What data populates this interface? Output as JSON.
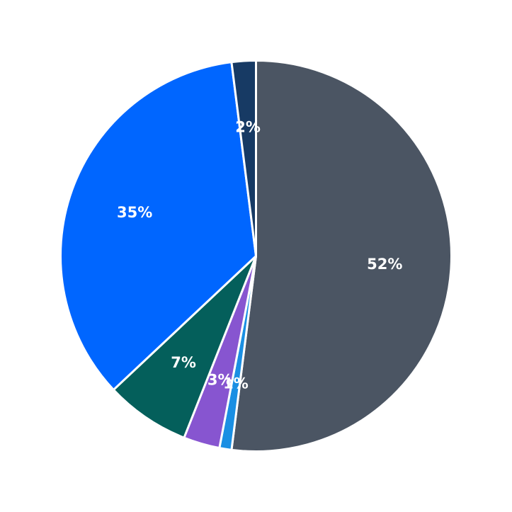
{
  "chart_data": {
    "type": "pie",
    "title": "",
    "start": "12 o'clock",
    "direction": "clockwise",
    "slices": [
      {
        "value": 52,
        "label": "52%",
        "color": "#4b5563"
      },
      {
        "value": 1,
        "label": "1%",
        "color": "#1a8fe3"
      },
      {
        "value": 3,
        "label": "3%",
        "color": "#8755d0"
      },
      {
        "value": 7,
        "label": "7%",
        "color": "#045f5b"
      },
      {
        "value": 35,
        "label": "35%",
        "color": "#0066ff"
      },
      {
        "value": 2,
        "label": "2%",
        "color": "#173a64"
      }
    ],
    "legend": "none",
    "grid": false
  }
}
